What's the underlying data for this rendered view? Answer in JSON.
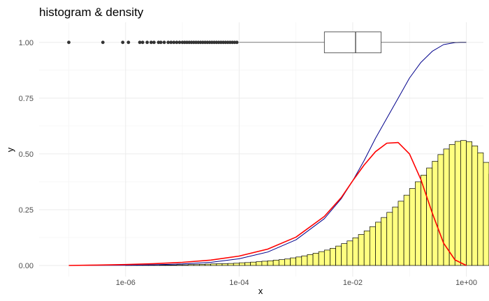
{
  "chart_data": {
    "type": "histogram",
    "title": "histogram & density",
    "xlabel": "x",
    "ylabel": "y",
    "x_scale": "log10",
    "xlim": [
      3e-08,
      2
    ],
    "ylim": [
      -0.05,
      1.09
    ],
    "grid": true,
    "legend": "none",
    "x_ticks": [
      {
        "value": 1e-06,
        "label": "1e-06"
      },
      {
        "value": 0.0001,
        "label": "1e-04"
      },
      {
        "value": 0.01,
        "label": "1e-02"
      },
      {
        "value": 1,
        "label": "1e+00"
      }
    ],
    "y_ticks": [
      {
        "value": 0,
        "label": "0.00"
      },
      {
        "value": 0.25,
        "label": "0.25"
      },
      {
        "value": 0.5,
        "label": "0.50"
      },
      {
        "value": 0.75,
        "label": "0.75"
      },
      {
        "value": 1,
        "label": "1.00"
      }
    ],
    "histogram": {
      "fill_color": "#ffff80",
      "edge_color": "#000000",
      "bin_log10_start": -8,
      "bin_log10_width": 0.1,
      "bin_heights": [
        0.0,
        0.0,
        0.0,
        0.0,
        0.0,
        0.0,
        0.0,
        0.0,
        0.0,
        0.0,
        0.0,
        0.0,
        0.0,
        0.0,
        0.0,
        0.0,
        0.0,
        0.0,
        0.0,
        0.0,
        0.001,
        0.001,
        0.001,
        0.001,
        0.001,
        0.001,
        0.002,
        0.002,
        0.002,
        0.003,
        0.003,
        0.004,
        0.004,
        0.005,
        0.006,
        0.007,
        0.008,
        0.008,
        0.009,
        0.01,
        0.012,
        0.013,
        0.015,
        0.017,
        0.019,
        0.021,
        0.024,
        0.026,
        0.029,
        0.034,
        0.038,
        0.043,
        0.049,
        0.055,
        0.062,
        0.069,
        0.077,
        0.087,
        0.098,
        0.11,
        0.124,
        0.139,
        0.155,
        0.174,
        0.194,
        0.215,
        0.238,
        0.262,
        0.288,
        0.315,
        0.345,
        0.375,
        0.405,
        0.437,
        0.467,
        0.497,
        0.522,
        0.542,
        0.556,
        0.56,
        0.555,
        0.536,
        0.505,
        0.462,
        0.41,
        0.349,
        0.285,
        0.223,
        0.164,
        0.113,
        0.073,
        0.043,
        0.022,
        0.01,
        0.004,
        0.001,
        0.0,
        0.0,
        0.0,
        0.0
      ]
    },
    "density": {
      "color": "#ff0000",
      "x_log10": [
        -7,
        -6.5,
        -6,
        -5.5,
        -5,
        -4.5,
        -4,
        -3.5,
        -3,
        -2.5,
        -2.2,
        -2,
        -1.8,
        -1.6,
        -1.4,
        -1.2,
        -1,
        -0.8,
        -0.6,
        -0.4,
        -0.2,
        0
      ],
      "y": [
        0.0,
        0.002,
        0.004,
        0.008,
        0.014,
        0.024,
        0.042,
        0.073,
        0.127,
        0.22,
        0.305,
        0.38,
        0.45,
        0.51,
        0.548,
        0.551,
        0.5,
        0.385,
        0.235,
        0.1,
        0.025,
        0.0
      ]
    },
    "ecdf": {
      "color": "#00008b",
      "x_log10": [
        -7,
        -6,
        -5.5,
        -5,
        -4.5,
        -4,
        -3.5,
        -3,
        -2.5,
        -2.2,
        -2,
        -1.8,
        -1.6,
        -1.4,
        -1.2,
        -1,
        -0.8,
        -0.6,
        -0.4,
        -0.2,
        -0.1,
        0
      ],
      "y": [
        0.0,
        0.001,
        0.003,
        0.007,
        0.014,
        0.03,
        0.06,
        0.115,
        0.21,
        0.3,
        0.38,
        0.47,
        0.57,
        0.66,
        0.75,
        0.84,
        0.91,
        0.96,
        0.99,
        0.999,
        1.0,
        1.0
      ]
    },
    "boxplot": {
      "y": 1.0,
      "q1_log10": -2.5,
      "median_log10": -1.95,
      "q3_log10": -1.5,
      "whisker_high_log10": 0,
      "whisker_low_log10": -4.0,
      "outliers_log10": [
        -7,
        -6.4,
        -6.05,
        -5.95,
        -5.75,
        -5.7,
        -5.62,
        -5.55,
        -5.5,
        -5.42,
        -5.38,
        -5.32,
        -5.25,
        -5.2,
        -5.15,
        -5.1,
        -5.05,
        -5.0,
        -4.96,
        -4.92,
        -4.88,
        -4.84,
        -4.8,
        -4.76,
        -4.72,
        -4.68,
        -4.64,
        -4.6,
        -4.56,
        -4.52,
        -4.48,
        -4.44,
        -4.4,
        -4.36,
        -4.32,
        -4.28,
        -4.24,
        -4.2,
        -4.16,
        -4.12,
        -4.08,
        -4.04
      ]
    }
  }
}
